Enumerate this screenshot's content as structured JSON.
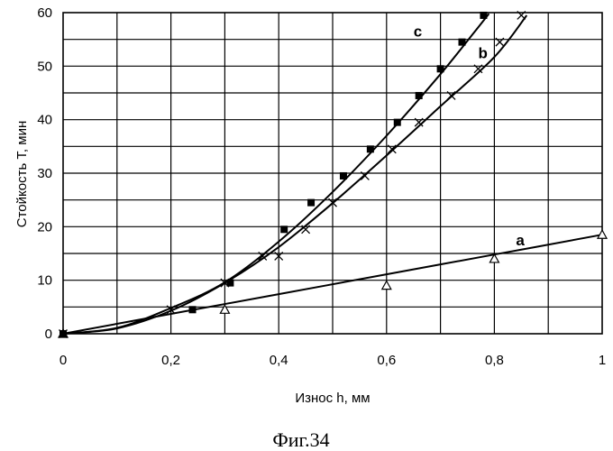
{
  "chart_data": {
    "type": "scatter",
    "xlabel": "Износ h, мм",
    "ylabel": "Стойкость Т, мин",
    "xlim": [
      0,
      1
    ],
    "ylim": [
      0,
      60
    ],
    "x_ticks": [
      "0",
      "0,2",
      "0,4",
      "0,6",
      "0,8",
      "1"
    ],
    "y_ticks": [
      "0",
      "10",
      "20",
      "30",
      "40",
      "50",
      "60"
    ],
    "grid": true,
    "series": [
      {
        "name": "a",
        "marker": "triangle",
        "points": [
          [
            0,
            0
          ],
          [
            0.3,
            4.5
          ],
          [
            0.6,
            9
          ],
          [
            0.8,
            14
          ],
          [
            1.0,
            18.5
          ]
        ],
        "curve": [
          [
            0,
            0
          ],
          [
            0.2,
            3.7
          ],
          [
            0.4,
            7.4
          ],
          [
            0.6,
            11.1
          ],
          [
            0.8,
            14.8
          ],
          [
            1.0,
            18.5
          ]
        ]
      },
      {
        "name": "b",
        "marker": "x",
        "points": [
          [
            0,
            0
          ],
          [
            0.2,
            4.5
          ],
          [
            0.3,
            9.5
          ],
          [
            0.37,
            14.5
          ],
          [
            0.4,
            14.5
          ],
          [
            0.45,
            19.5
          ],
          [
            0.5,
            24.5
          ],
          [
            0.56,
            29.5
          ],
          [
            0.61,
            34.5
          ],
          [
            0.66,
            39.5
          ],
          [
            0.72,
            44.5
          ],
          [
            0.77,
            49.5
          ],
          [
            0.81,
            54.5
          ],
          [
            0.85,
            59.5
          ]
        ],
        "curve": [
          [
            0,
            0
          ],
          [
            0.1,
            1.0
          ],
          [
            0.2,
            4.3
          ],
          [
            0.3,
            9.5
          ],
          [
            0.4,
            16.2
          ],
          [
            0.5,
            24.4
          ],
          [
            0.6,
            33.3
          ],
          [
            0.7,
            42.5
          ],
          [
            0.8,
            51.7
          ],
          [
            0.86,
            59.5
          ]
        ]
      },
      {
        "name": "c",
        "marker": "square",
        "points": [
          [
            0,
            0
          ],
          [
            0.24,
            4.5
          ],
          [
            0.31,
            9.5
          ],
          [
            0.41,
            19.5
          ],
          [
            0.46,
            24.5
          ],
          [
            0.52,
            29.5
          ],
          [
            0.57,
            34.5
          ],
          [
            0.62,
            39.5
          ],
          [
            0.66,
            44.5
          ],
          [
            0.7,
            49.5
          ],
          [
            0.74,
            54.5
          ],
          [
            0.78,
            59.5
          ]
        ],
        "curve": [
          [
            0,
            0
          ],
          [
            0.1,
            1.1
          ],
          [
            0.2,
            4.8
          ],
          [
            0.3,
            9.6
          ],
          [
            0.4,
            17.2
          ],
          [
            0.5,
            26.5
          ],
          [
            0.6,
            37.0
          ],
          [
            0.7,
            48.5
          ],
          [
            0.76,
            56.0
          ],
          [
            0.79,
            59.8
          ]
        ]
      }
    ],
    "annotations": [
      "a",
      "b",
      "c"
    ]
  },
  "caption": "Фиг.34"
}
